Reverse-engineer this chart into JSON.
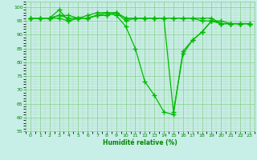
{
  "x": [
    0,
    1,
    2,
    3,
    4,
    5,
    6,
    7,
    8,
    9,
    10,
    11,
    12,
    13,
    14,
    15,
    16,
    17,
    18,
    19,
    20,
    21,
    22,
    23
  ],
  "series": [
    [
      96,
      96,
      96,
      99,
      95,
      96,
      97,
      98,
      98,
      97,
      93,
      85,
      73,
      68,
      62,
      61,
      84,
      88,
      91,
      95,
      95,
      94,
      94,
      94
    ],
    [
      96,
      96,
      96,
      96,
      95,
      96,
      96,
      97,
      97,
      98,
      95,
      96,
      96,
      96,
      96,
      96,
      96,
      96,
      95,
      95,
      94,
      94,
      94,
      94
    ],
    [
      96,
      96,
      96,
      97,
      96,
      96,
      96,
      97,
      98,
      98,
      96,
      96,
      96,
      96,
      96,
      96,
      96,
      96,
      96,
      96,
      94,
      94,
      94,
      94
    ],
    [
      96,
      96,
      96,
      97,
      97,
      96,
      96,
      97,
      97,
      98,
      96,
      96,
      96,
      96,
      96,
      62,
      83,
      88,
      91,
      95,
      94,
      94,
      94,
      94
    ]
  ],
  "line_color": "#00bb00",
  "bg_color": "#c8eee8",
  "grid_major_color": "#88cc88",
  "grid_minor_color": "#aaddaa",
  "xlabel": "Humidité relative (%)",
  "xlabel_color": "#008800",
  "tick_color": "#008800",
  "ylim": [
    55,
    102
  ],
  "xlim": [
    -0.5,
    23.5
  ],
  "yticks": [
    55,
    60,
    65,
    70,
    75,
    80,
    85,
    90,
    95,
    100
  ],
  "xticks": [
    0,
    1,
    2,
    3,
    4,
    5,
    6,
    7,
    8,
    9,
    10,
    11,
    12,
    13,
    14,
    15,
    16,
    17,
    18,
    19,
    20,
    21,
    22,
    23
  ],
  "marker": "+",
  "linewidth": 0.9,
  "markersize": 4,
  "markeredgewidth": 1.0
}
